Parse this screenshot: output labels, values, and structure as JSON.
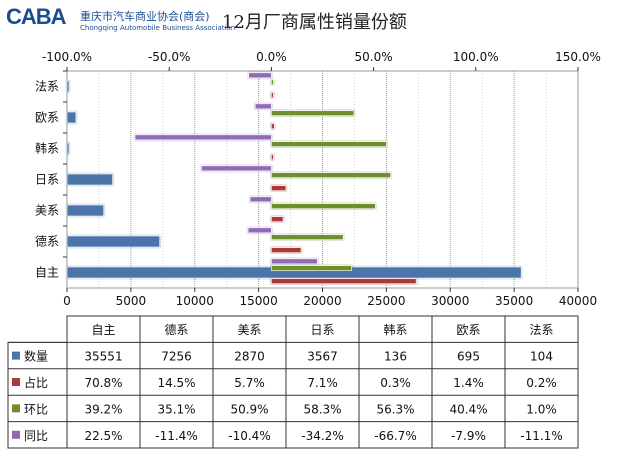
{
  "header": {
    "logo_mark": "CABA",
    "logo_cn": "重庆市汽车商业协会(商会)",
    "logo_en": "Chongqing Automobile Business Association",
    "title": "12月厂商属性销量份额"
  },
  "chart_data": {
    "type": "bar",
    "orientation": "horizontal",
    "title": "12月厂商属性销量份额",
    "categories": [
      "自主",
      "德系",
      "美系",
      "日系",
      "韩系",
      "欧系",
      "法系"
    ],
    "series": [
      {
        "name": "数量",
        "axis": "bottom",
        "color": "#4a74aa",
        "values": [
          35551,
          7256,
          2870,
          3567,
          136,
          695,
          104
        ]
      },
      {
        "name": "占比",
        "axis": "top",
        "color": "#a83a3a",
        "values": [
          70.8,
          14.5,
          5.7,
          7.1,
          0.3,
          1.4,
          0.2
        ],
        "labels": [
          "70.8%",
          "14.5%",
          "5.7%",
          "7.1%",
          "0.3%",
          "1.4%",
          "0.2%"
        ]
      },
      {
        "name": "环比",
        "axis": "top",
        "color": "#6f8f2e",
        "values": [
          39.2,
          35.1,
          50.9,
          58.3,
          56.3,
          40.4,
          1.0
        ],
        "labels": [
          "39.2%",
          "35.1%",
          "50.9%",
          "58.3%",
          "56.3%",
          "40.4%",
          "1.0%"
        ]
      },
      {
        "name": "同比",
        "axis": "top",
        "color": "#8e6bb4",
        "values": [
          22.5,
          -11.4,
          -10.4,
          -34.2,
          -66.7,
          -7.9,
          -11.1
        ],
        "labels": [
          "22.5%",
          "-11.4%",
          "-10.4%",
          "-34.2%",
          "-66.7%",
          "-7.9%",
          "-11.1%"
        ]
      }
    ],
    "bottom_axis": {
      "min": 0,
      "max": 40000,
      "step": 5000,
      "tick_labels": [
        "0",
        "5000",
        "10000",
        "15000",
        "20000",
        "25000",
        "30000",
        "35000",
        "40000"
      ]
    },
    "top_axis": {
      "min": -100,
      "max": 150,
      "step": 50,
      "tick_labels": [
        "-100.0%",
        "-50.0%",
        "0.0%",
        "50.0%",
        "100.0%",
        "150.0%"
      ]
    },
    "grid": true,
    "legend": "data table below chart"
  }
}
